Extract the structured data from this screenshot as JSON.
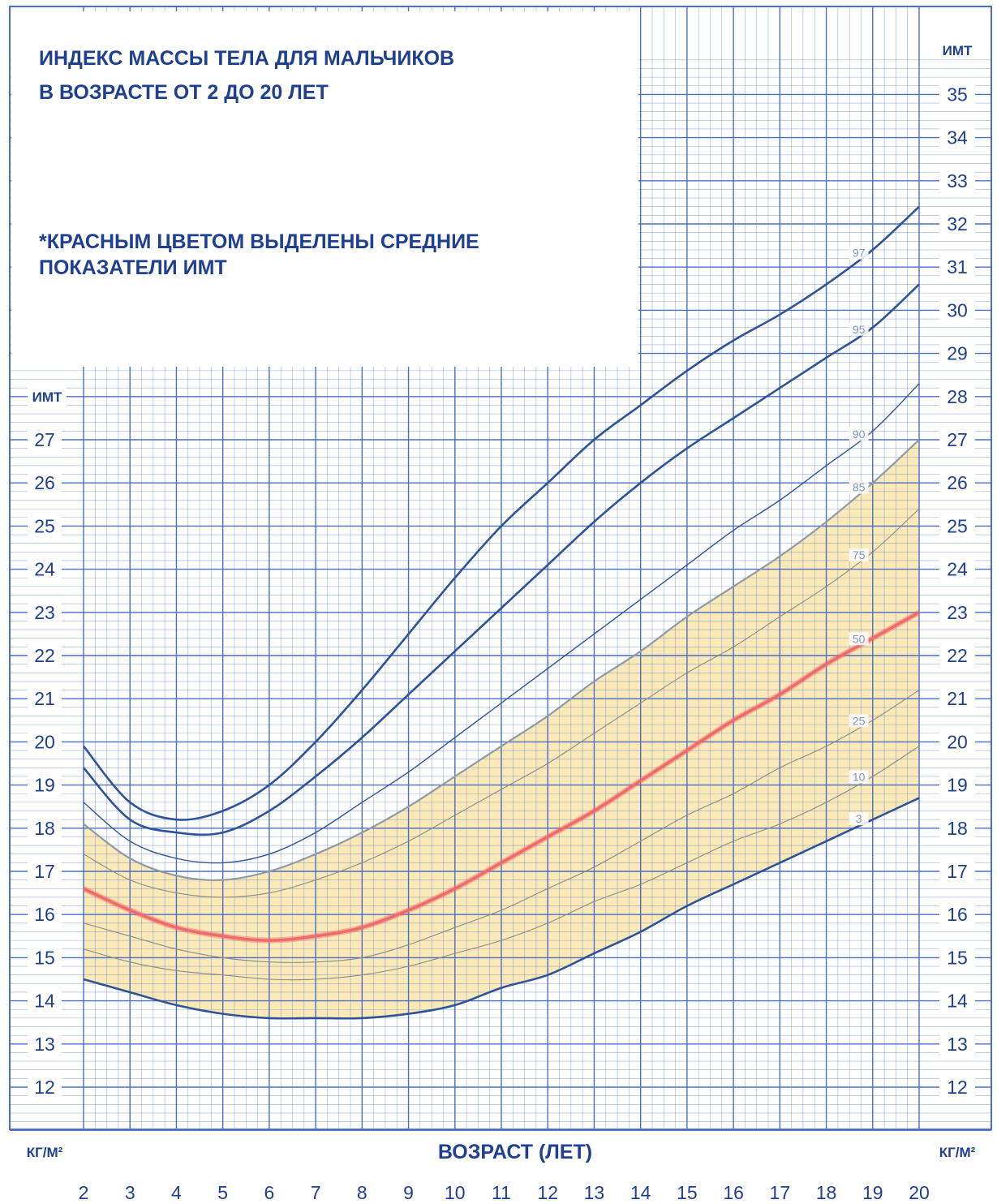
{
  "title_line1": "ИНДЕКС МАССЫ ТЕЛА ДЛЯ МАЛЬЧИКОВ",
  "title_line2": "В ВОЗРАСТЕ ОТ 2 ДО 20 ЛЕТ",
  "note_line1": "*КРАСНЫМ ЦВЕТОМ ВЫДЕЛЕНЫ СРЕДНИЕ",
  "note_line2": "ПОКАЗАТЕЛИ ИМТ",
  "ylabel_left": "ИМТ",
  "ylabel_right": "ИМТ",
  "unit_left": "КГ/М²",
  "unit_right": "КГ/М²",
  "colors": {
    "grid": "#4a6fc4",
    "ink": "#1f3f8f",
    "band": "#fbe9b8",
    "median": "#ef6a6a",
    "curve": "#2f5496",
    "thin": "#8a8a8a"
  },
  "chart_data": {
    "type": "line",
    "title": "ИНДЕКС МАССЫ ТЕЛА ДЛЯ МАЛЬЧИКОВ В ВОЗРАСТЕ ОТ 2 ДО 20 ЛЕТ",
    "xlabel": "ВОЗРАСТ (ЛЕТ)",
    "ylabel": "ИМТ",
    "x_ticks": [
      2,
      3,
      4,
      5,
      6,
      7,
      8,
      9,
      10,
      11,
      12,
      13,
      14,
      15,
      16,
      17,
      18,
      19,
      20
    ],
    "y_ticks_left": [
      12,
      13,
      14,
      15,
      16,
      17,
      18,
      19,
      20,
      21,
      22,
      23,
      24,
      25,
      26,
      27
    ],
    "y_ticks_right": [
      12,
      13,
      14,
      15,
      16,
      17,
      18,
      19,
      20,
      21,
      22,
      23,
      24,
      25,
      26,
      27,
      28,
      29,
      30,
      31,
      32,
      33,
      34,
      35
    ],
    "xlim": [
      2,
      20
    ],
    "ylim": [
      11,
      36
    ],
    "grid": true,
    "shaded_band": {
      "from_series": "3",
      "to_series": "85"
    },
    "highlighted_series": "50",
    "ages": [
      2,
      3,
      4,
      5,
      6,
      7,
      8,
      9,
      10,
      11,
      12,
      13,
      14,
      15,
      16,
      17,
      18,
      19,
      20
    ],
    "series": [
      {
        "name": "97",
        "values": [
          19.9,
          18.6,
          18.2,
          18.4,
          19.0,
          20.0,
          21.2,
          22.5,
          23.8,
          25.0,
          26.0,
          27.0,
          27.8,
          28.6,
          29.3,
          29.9,
          30.6,
          31.4,
          32.4
        ]
      },
      {
        "name": "95",
        "values": [
          19.4,
          18.2,
          17.9,
          17.9,
          18.4,
          19.2,
          20.1,
          21.1,
          22.1,
          23.1,
          24.1,
          25.1,
          26.0,
          26.8,
          27.5,
          28.2,
          28.9,
          29.6,
          30.6
        ]
      },
      {
        "name": "90",
        "values": [
          18.6,
          17.7,
          17.3,
          17.2,
          17.4,
          17.9,
          18.6,
          19.3,
          20.1,
          20.9,
          21.7,
          22.5,
          23.3,
          24.1,
          24.9,
          25.6,
          26.4,
          27.2,
          28.3
        ]
      },
      {
        "name": "85",
        "values": [
          18.1,
          17.3,
          16.9,
          16.8,
          17.0,
          17.4,
          17.9,
          18.5,
          19.2,
          19.9,
          20.6,
          21.4,
          22.1,
          22.9,
          23.6,
          24.3,
          25.1,
          26.0,
          27.0
        ]
      },
      {
        "name": "75",
        "values": [
          17.4,
          16.8,
          16.5,
          16.4,
          16.5,
          16.8,
          17.2,
          17.7,
          18.3,
          18.9,
          19.5,
          20.2,
          20.9,
          21.6,
          22.2,
          22.9,
          23.6,
          24.4,
          25.4
        ]
      },
      {
        "name": "50",
        "values": [
          16.6,
          16.1,
          15.7,
          15.5,
          15.4,
          15.5,
          15.7,
          16.1,
          16.6,
          17.2,
          17.8,
          18.4,
          19.1,
          19.8,
          20.5,
          21.1,
          21.8,
          22.4,
          23.0
        ]
      },
      {
        "name": "25",
        "values": [
          15.8,
          15.5,
          15.2,
          15.0,
          14.9,
          14.9,
          15.0,
          15.3,
          15.7,
          16.1,
          16.6,
          17.1,
          17.7,
          18.3,
          18.8,
          19.4,
          19.9,
          20.5,
          21.2
        ]
      },
      {
        "name": "10",
        "values": [
          15.2,
          14.9,
          14.7,
          14.6,
          14.5,
          14.5,
          14.6,
          14.8,
          15.1,
          15.4,
          15.8,
          16.3,
          16.7,
          17.2,
          17.7,
          18.1,
          18.6,
          19.2,
          19.9
        ]
      },
      {
        "name": "3",
        "values": [
          14.5,
          14.2,
          13.9,
          13.7,
          13.6,
          13.6,
          13.6,
          13.7,
          13.9,
          14.3,
          14.6,
          15.1,
          15.6,
          16.2,
          16.7,
          17.2,
          17.7,
          18.2,
          18.7
        ]
      }
    ]
  }
}
